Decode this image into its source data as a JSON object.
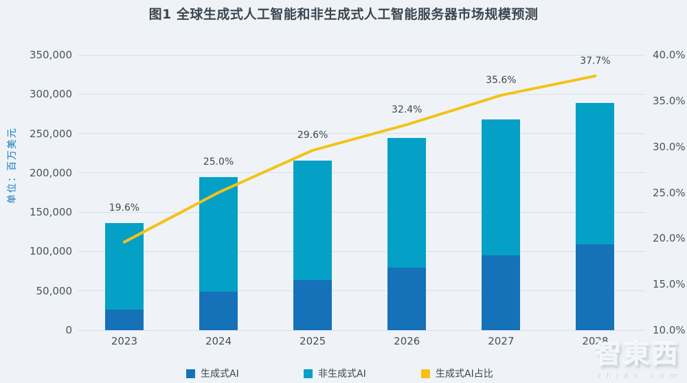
{
  "title": "图1 全球生成式人工智能和非生成式人工智能服务器市场规模预测",
  "y_axis_unit": "单位：百万美元",
  "watermark": {
    "logo_text": "智東西",
    "domain": "z h i d x . c o m"
  },
  "colors": {
    "background": "#eff3f8",
    "gridline": "#d9dfe5",
    "generative_bar": "#1572b9",
    "non_generative_bar": "#04a0c5",
    "share_line": "#f4c217",
    "axis_text": "#4a535d",
    "unit_text": "#1778c3",
    "title_text": "#3c4651"
  },
  "legend": [
    {
      "label": "生成式AI",
      "color": "#1572b9"
    },
    {
      "label": "非生成式AI",
      "color": "#04a0c5"
    },
    {
      "label": "生成式AI占比",
      "color": "#f4c217"
    }
  ],
  "chart_data": {
    "type": "bar",
    "subtype": "stacked-bar-with-line",
    "title": "图1 全球生成式人工智能和非生成式人工智能服务器市场规模预测",
    "ylabel_left": "单位：百万美元",
    "categories": [
      "2023",
      "2024",
      "2025",
      "2026",
      "2027",
      "2028"
    ],
    "series": [
      {
        "name": "生成式AI",
        "type": "bar",
        "stack": "total",
        "axis": "left",
        "color": "#1572b9",
        "values": [
          26600,
          48600,
          64000,
          79100,
          95500,
          109000
        ]
      },
      {
        "name": "非生成式AI",
        "type": "bar",
        "stack": "total",
        "axis": "left",
        "color": "#04a0c5",
        "values": [
          109200,
          146000,
          152000,
          165100,
          172700,
          180000
        ]
      },
      {
        "name": "生成式AI占比",
        "type": "line",
        "axis": "right",
        "color": "#f4c217",
        "values": [
          19.6,
          25.0,
          29.6,
          32.4,
          35.6,
          37.7
        ]
      }
    ],
    "stack_totals_estimated": [
      135800,
      194600,
      216000,
      244200,
      268200,
      289000
    ],
    "point_labels": [
      "19.6%",
      "25.0%",
      "29.6%",
      "32.4%",
      "35.6%",
      "37.7%"
    ],
    "left_axis": {
      "min": 0,
      "max": 350000,
      "step": 50000,
      "labels": [
        "0",
        "50,000",
        "100,000",
        "150,000",
        "200,000",
        "250,000",
        "300,000",
        "350,000"
      ]
    },
    "right_axis": {
      "min": 10,
      "max": 40,
      "step": 5,
      "labels": [
        "10.0%",
        "15.0%",
        "20.0%",
        "25.0%",
        "30.0%",
        "35.0%",
        "40.0%"
      ]
    },
    "grid": true,
    "legend_position": "bottom"
  }
}
